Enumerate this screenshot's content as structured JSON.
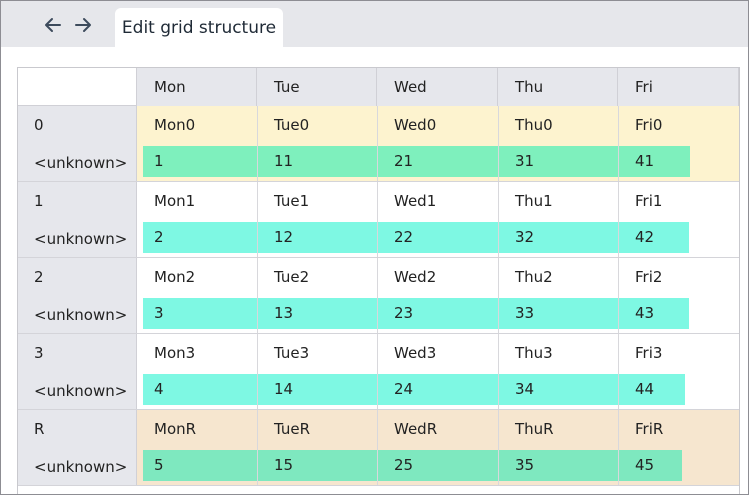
{
  "nav": {
    "back_glyph": "back-arrow-icon",
    "forward_glyph": "forward-arrow-icon"
  },
  "tab": {
    "label": "Edit grid structure"
  },
  "columns": [
    "Mon",
    "Tue",
    "Wed",
    "Thu",
    "Fri"
  ],
  "rows": [
    {
      "label": "0",
      "type": "<unknown>",
      "cells": [
        "Mon0",
        "Tue0",
        "Wed0",
        "Thu0",
        "Fri0"
      ],
      "values": [
        "1",
        "11",
        "21",
        "31",
        "41"
      ],
      "bg": "#fdf3cf",
      "bar": "#7ef0bd"
    },
    {
      "label": "1",
      "type": "<unknown>",
      "cells": [
        "Mon1",
        "Tue1",
        "Wed1",
        "Thu1",
        "Fri1"
      ],
      "values": [
        "2",
        "12",
        "22",
        "32",
        "42"
      ],
      "bg": "#ffffff",
      "bar": "#7ef8e3"
    },
    {
      "label": "2",
      "type": "<unknown>",
      "cells": [
        "Mon2",
        "Tue2",
        "Wed2",
        "Thu2",
        "Fri2"
      ],
      "values": [
        "3",
        "13",
        "23",
        "33",
        "43"
      ],
      "bg": "#ffffff",
      "bar": "#7ef8e3"
    },
    {
      "label": "3",
      "type": "<unknown>",
      "cells": [
        "Mon3",
        "Tue3",
        "Wed3",
        "Thu3",
        "Fri3"
      ],
      "values": [
        "4",
        "14",
        "24",
        "34",
        "44"
      ],
      "bg": "#ffffff",
      "bar": "#7ef8e3"
    },
    {
      "label": "R",
      "type": "<unknown>",
      "cells": [
        "MonR",
        "TueR",
        "WedR",
        "ThuR",
        "FriR"
      ],
      "values": [
        "5",
        "15",
        "25",
        "35",
        "45"
      ],
      "bg": "#f6e6cf",
      "bar": "#7ee8bf"
    }
  ]
}
